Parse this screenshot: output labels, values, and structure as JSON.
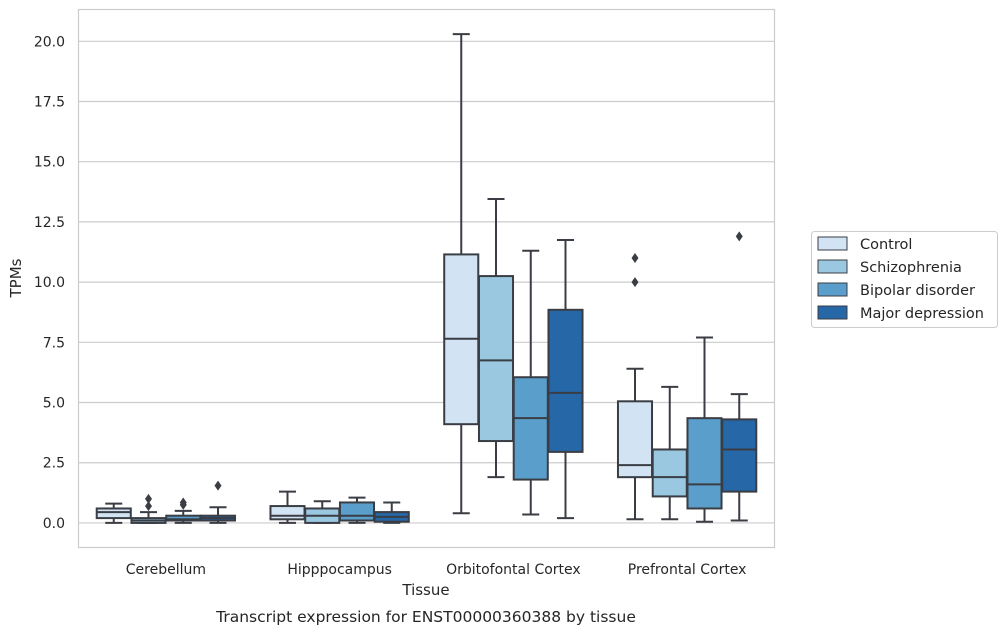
{
  "chart_data": {
    "type": "boxplot",
    "caption": "Transcript expression for ENST00000360388 by tissue",
    "xlabel": "Tissue",
    "ylabel": "TPMs",
    "ylim": [
      -1.0,
      21.3
    ],
    "yticks": [
      0.0,
      2.5,
      5.0,
      7.5,
      10.0,
      12.5,
      15.0,
      17.5,
      20.0
    ],
    "ytick_labels": [
      "0.0",
      "2.5",
      "5.0",
      "7.5",
      "10.0",
      "12.5",
      "15.0",
      "17.5",
      "20.0"
    ],
    "grid": "horizontal",
    "legend_position": "right, outside plot",
    "categories": [
      "Cerebellum",
      "Hipppocampus",
      "Orbitofontal Cortex",
      "Prefrontal Cortex"
    ],
    "series": [
      {
        "name": "Control",
        "color": "#d2e3f3",
        "boxes": [
          {
            "whislo": 0.0,
            "q1": 0.2,
            "med": 0.45,
            "q3": 0.6,
            "whishi": 0.8,
            "fliers": []
          },
          {
            "whislo": 0.0,
            "q1": 0.15,
            "med": 0.3,
            "q3": 0.7,
            "whishi": 1.3,
            "fliers": []
          },
          {
            "whislo": 0.4,
            "q1": 4.1,
            "med": 7.65,
            "q3": 11.15,
            "whishi": 20.3,
            "fliers": []
          },
          {
            "whislo": 0.15,
            "q1": 1.9,
            "med": 2.4,
            "q3": 5.05,
            "whishi": 6.4,
            "fliers": [
              10.0,
              11.0
            ]
          }
        ]
      },
      {
        "name": "Schizophrenia",
        "color": "#9ac8e0",
        "boxes": [
          {
            "whislo": 0.0,
            "q1": 0.0,
            "med": 0.1,
            "q3": 0.2,
            "whishi": 0.45,
            "fliers": [
              0.7,
              1.0
            ]
          },
          {
            "whislo": 0.0,
            "q1": 0.0,
            "med": 0.3,
            "q3": 0.6,
            "whishi": 0.9,
            "fliers": []
          },
          {
            "whislo": 1.9,
            "q1": 3.4,
            "med": 6.75,
            "q3": 10.25,
            "whishi": 13.45,
            "fliers": []
          },
          {
            "whislo": 0.15,
            "q1": 1.1,
            "med": 1.9,
            "q3": 3.05,
            "whishi": 5.65,
            "fliers": []
          }
        ]
      },
      {
        "name": "Bipolar disorder",
        "color": "#5a9fcb",
        "boxes": [
          {
            "whislo": 0.0,
            "q1": 0.1,
            "med": 0.15,
            "q3": 0.3,
            "whishi": 0.5,
            "fliers": [
              0.75,
              0.85
            ]
          },
          {
            "whislo": 0.0,
            "q1": 0.1,
            "med": 0.3,
            "q3": 0.85,
            "whishi": 1.05,
            "fliers": []
          },
          {
            "whislo": 0.35,
            "q1": 1.8,
            "med": 4.35,
            "q3": 6.05,
            "whishi": 11.3,
            "fliers": []
          },
          {
            "whislo": 0.05,
            "q1": 0.6,
            "med": 1.6,
            "q3": 4.35,
            "whishi": 7.7,
            "fliers": []
          }
        ]
      },
      {
        "name": "Major depression",
        "color": "#2667a8",
        "boxes": [
          {
            "whislo": 0.0,
            "q1": 0.1,
            "med": 0.2,
            "q3": 0.3,
            "whishi": 0.65,
            "fliers": [
              1.55
            ]
          },
          {
            "whislo": 0.0,
            "q1": 0.05,
            "med": 0.25,
            "q3": 0.45,
            "whishi": 0.85,
            "fliers": []
          },
          {
            "whislo": 0.2,
            "q1": 2.95,
            "med": 5.4,
            "q3": 8.85,
            "whishi": 11.75,
            "fliers": []
          },
          {
            "whislo": 0.1,
            "q1": 1.3,
            "med": 3.05,
            "q3": 4.3,
            "whishi": 5.35,
            "fliers": [
              11.9
            ]
          }
        ]
      }
    ]
  }
}
